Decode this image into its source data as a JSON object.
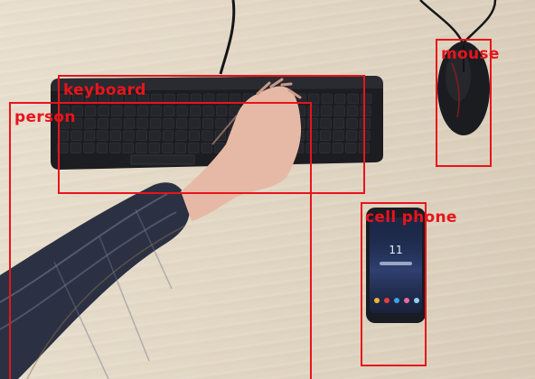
{
  "image": {
    "kind": "desk-photo-with-detections"
  },
  "detections": [
    {
      "label": "keyboard"
    },
    {
      "label": "person"
    },
    {
      "label": "mouse"
    },
    {
      "label": "cell phone"
    }
  ],
  "phone_screen": {
    "time": "11"
  },
  "colors": {
    "box": "#e8141c",
    "desk": "#e4d9c7",
    "keyboard": "#1a1b1e",
    "shirt": "#2b3142"
  }
}
